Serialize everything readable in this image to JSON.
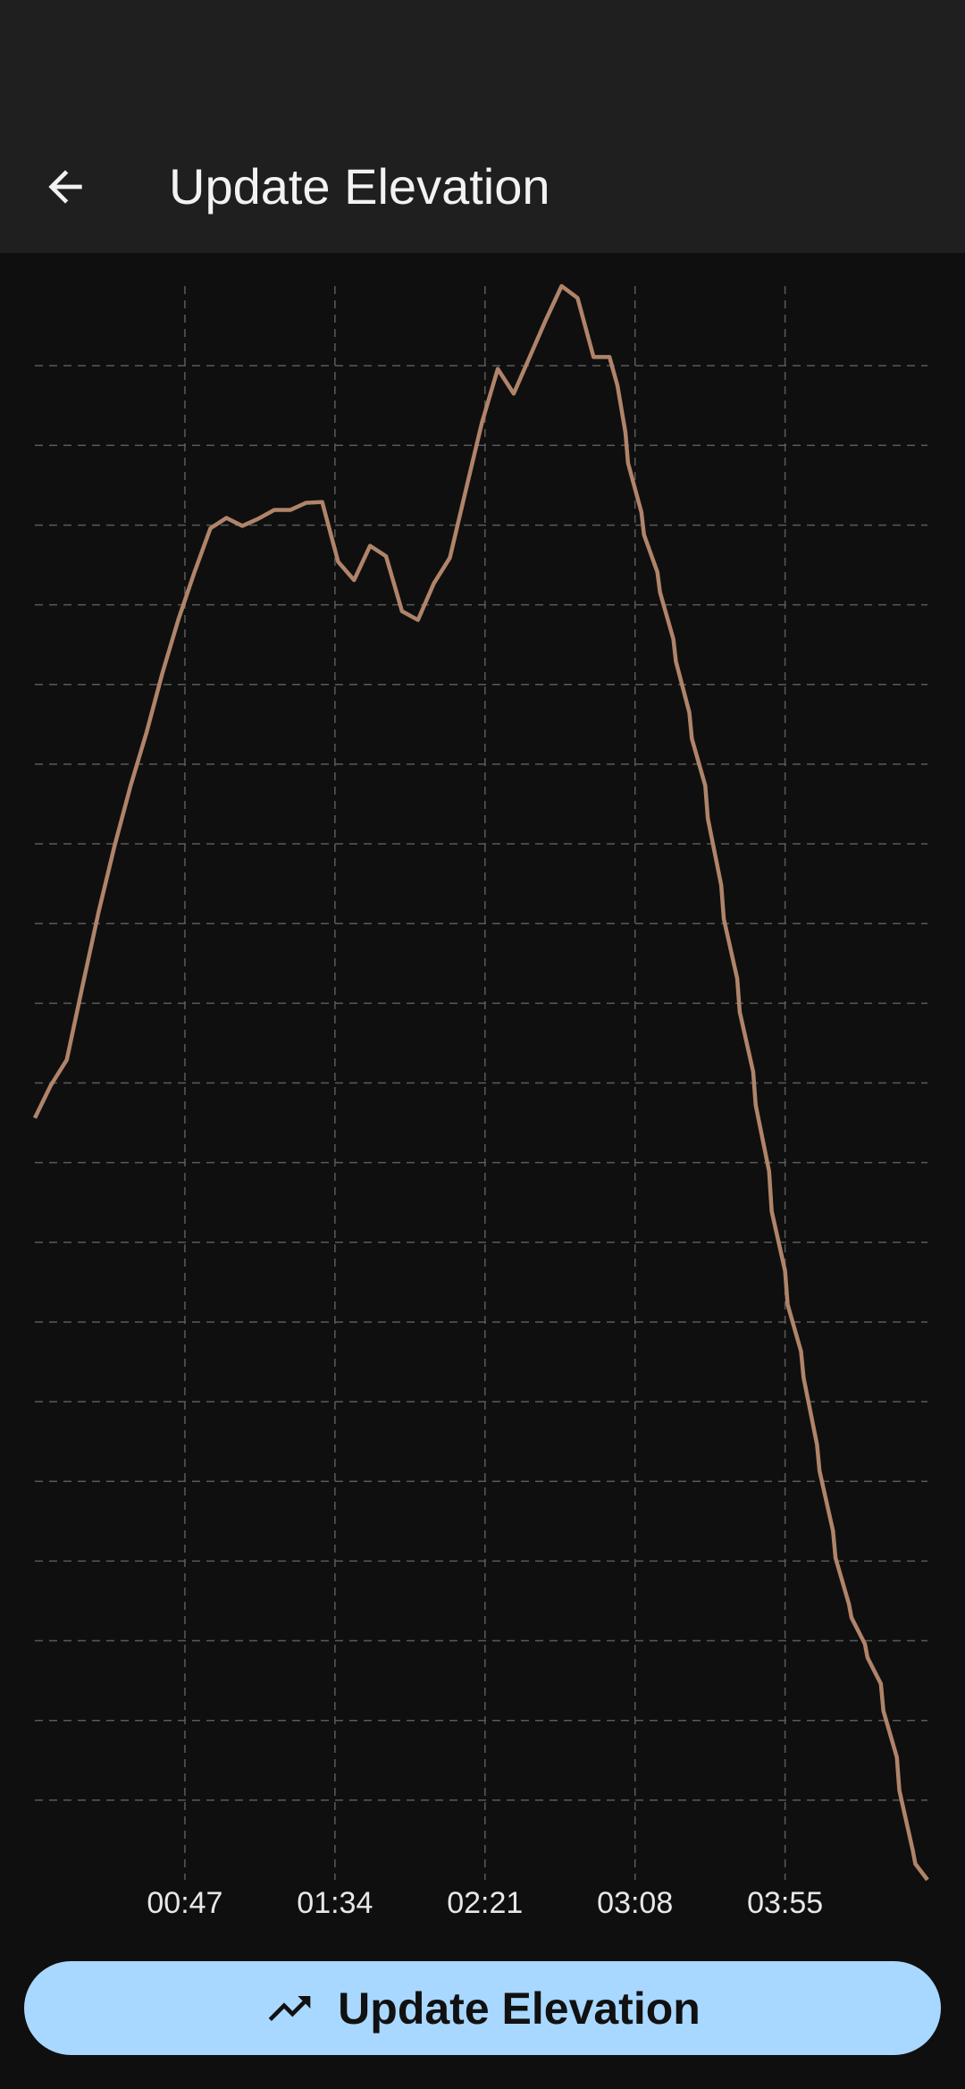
{
  "header": {
    "title": "Update Elevation"
  },
  "chart_data": {
    "type": "line",
    "x": [
      0,
      5,
      10,
      15,
      20,
      25,
      30,
      35,
      40,
      45,
      50,
      55,
      60,
      65,
      70,
      75,
      80,
      85,
      90,
      95,
      100,
      105,
      110,
      115,
      120,
      125,
      130,
      135,
      140,
      145,
      150,
      155,
      160,
      165,
      170,
      175,
      180,
      182.5,
      185,
      185.8,
      190,
      190.8,
      195,
      195.8,
      200,
      200.8,
      205,
      205.8,
      210,
      210.8,
      215,
      215.8,
      220,
      220.8,
      225,
      225.8,
      230,
      230.8,
      235,
      235.8,
      240,
      240.8,
      245,
      245.8,
      250,
      250.8,
      255,
      255.8,
      260,
      260.8,
      265,
      265.8,
      270,
      270.8,
      275,
      275.8,
      279.6
    ],
    "values": [
      9.56,
      9.97,
      10.29,
      11.23,
      12.15,
      12.98,
      13.73,
      14.4,
      15.15,
      15.82,
      16.41,
      16.96,
      17.09,
      16.99,
      17.08,
      17.19,
      17.19,
      17.28,
      17.29,
      16.54,
      16.31,
      16.74,
      16.61,
      15.92,
      15.81,
      16.27,
      16.59,
      17.44,
      18.28,
      18.96,
      18.65,
      19.11,
      19.57,
      20.0,
      19.85,
      19.11,
      19.11,
      18.75,
      18.16,
      17.78,
      17.16,
      16.88,
      16.41,
      16.16,
      15.57,
      15.29,
      14.65,
      14.32,
      13.73,
      13.32,
      12.48,
      12.06,
      11.31,
      10.89,
      10.14,
      9.72,
      8.89,
      8.39,
      7.64,
      7.22,
      6.63,
      6.3,
      5.46,
      5.13,
      4.38,
      4.04,
      3.46,
      3.29,
      2.96,
      2.79,
      2.46,
      2.12,
      1.54,
      1.12,
      0.37,
      0.2,
      0
    ],
    "color": "#b0846a",
    "xlim": [
      0,
      279.6
    ],
    "ylim": [
      0,
      20
    ],
    "xticks": [
      {
        "value": 47,
        "label": "00:47"
      },
      {
        "value": 94,
        "label": "01:34"
      },
      {
        "value": 141,
        "label": "02:21"
      },
      {
        "value": 188,
        "label": "03:08"
      },
      {
        "value": 235,
        "label": "03:55"
      }
    ],
    "yticks": [
      1,
      2,
      3,
      4,
      5,
      6,
      7,
      8,
      9,
      10,
      11,
      12,
      13,
      14,
      15,
      16,
      17,
      18,
      19
    ],
    "grid": true
  },
  "button": {
    "label": "Update Elevation"
  }
}
